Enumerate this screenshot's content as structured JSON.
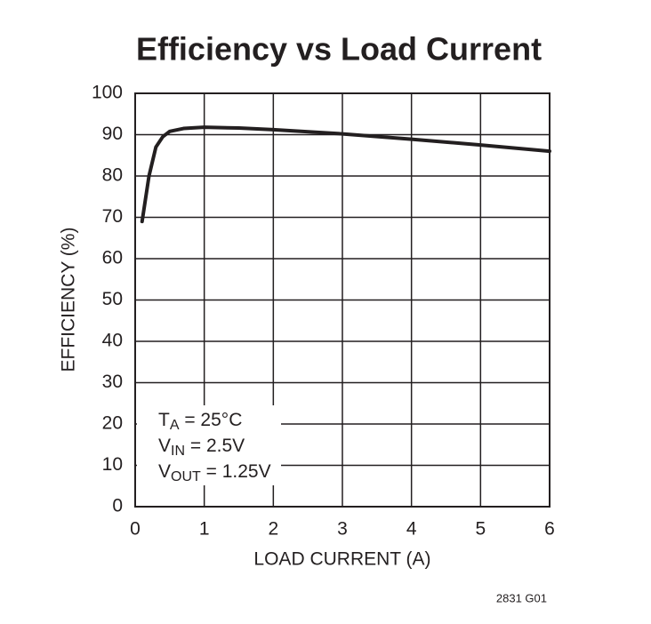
{
  "chart_data": {
    "type": "line",
    "title": "Efficiency vs Load Current",
    "x_label": "LOAD CURRENT (A)",
    "y_label": "EFFICIENCY (%)",
    "x": [
      0.1,
      0.2,
      0.3,
      0.4,
      0.5,
      0.7,
      1,
      1.5,
      2,
      3,
      4,
      5,
      6
    ],
    "series": [
      {
        "color": "#231f20",
        "values": [
          69,
          80,
          87,
          89.5,
          90.8,
          91.5,
          91.8,
          91.6,
          91.2,
          90.2,
          88.9,
          87.5,
          86
        ]
      }
    ],
    "xlim": [
      0,
      6
    ],
    "xticks": [
      0,
      1,
      2,
      3,
      4,
      5,
      6
    ],
    "ylim": [
      0,
      100
    ],
    "yticks": [
      0,
      10,
      20,
      30,
      40,
      50,
      60,
      70,
      80,
      90,
      100
    ],
    "grid": true,
    "annotations": [
      {
        "main": "T",
        "sub": "A",
        "rest": " = 25°C"
      },
      {
        "main": "V",
        "sub": "IN",
        "rest": " = 2.5V"
      },
      {
        "main": "V",
        "sub": "OUT",
        "rest": " = 1.25V"
      }
    ],
    "footnote": "2831 G01"
  }
}
